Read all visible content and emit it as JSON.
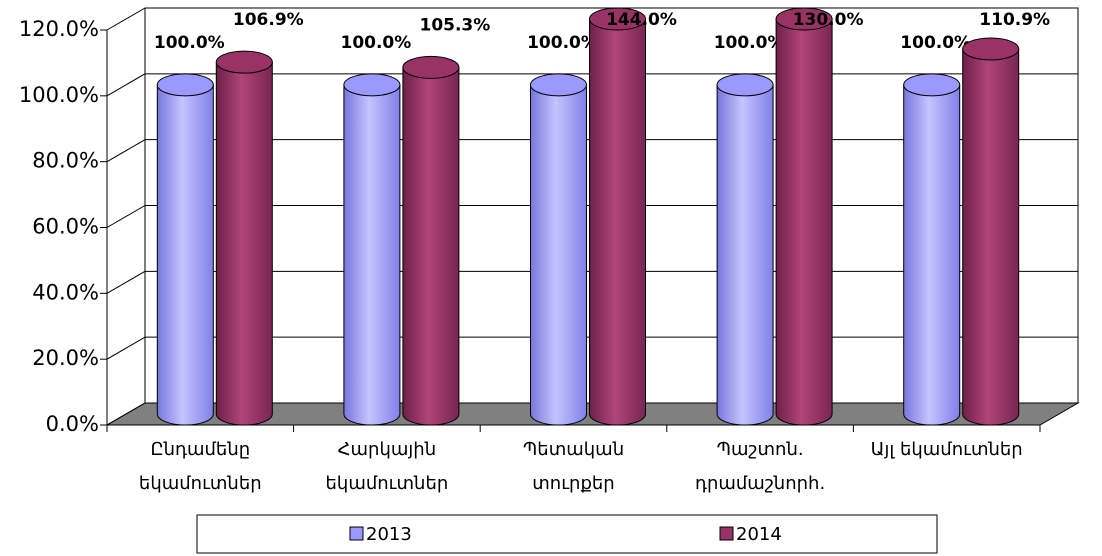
{
  "chart_data": {
    "type": "bar3d",
    "categories": [
      "Ընդամենը\nեկամուտներ",
      "Հարկային\nեկամուտներ",
      "Պետական\nտուրքեր",
      "Պաշտոն.\nդրամաշնորհ.",
      "Այլ եկամուտներ"
    ],
    "series": [
      {
        "name": "2013",
        "color": "#9999ff",
        "values": [
          100.0,
          100.0,
          100.0,
          100.0,
          100.0
        ],
        "value_labels": [
          "100.0%",
          "100.0%",
          "100.0%",
          "100.0%",
          "100.0%"
        ]
      },
      {
        "name": "2014",
        "color": "#993366",
        "values": [
          106.9,
          105.3,
          144.0,
          130.0,
          110.9
        ],
        "value_labels": [
          "106.9%",
          "105.3%",
          "144.0%",
          "130.0%",
          "110.9%"
        ]
      }
    ],
    "ylim": [
      0,
      120
    ],
    "yticks": [
      {
        "value": 0,
        "label": "0.0%"
      },
      {
        "value": 20,
        "label": "20.0%"
      },
      {
        "value": 40,
        "label": "40.0%"
      },
      {
        "value": 60,
        "label": "60.0%"
      },
      {
        "value": 80,
        "label": "80.0%"
      },
      {
        "value": 100,
        "label": "100.0%"
      },
      {
        "value": 120,
        "label": "120.0%"
      }
    ],
    "grid": true,
    "legend": "bottom"
  }
}
